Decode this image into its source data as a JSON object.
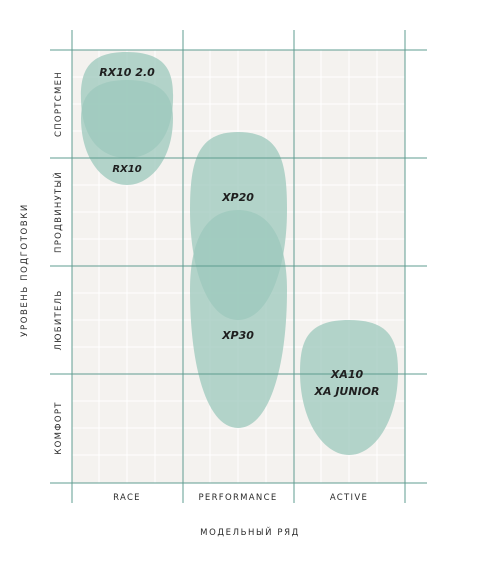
{
  "columns": [
    "RACE",
    "PERFORMANCE",
    "ACTIVE"
  ],
  "rows": [
    "СПОРТСМЕН",
    "ПРОДВИНУТЫЙ",
    "ЛЮБИТЕЛЬ",
    "КОМФОРТ"
  ],
  "x_axis_label": "МОДЕЛЬНЫЙ РЯД",
  "y_axis_label": "УРОВЕНЬ ПОДГОТОВКИ",
  "products": [
    {
      "name": "RX10 2.0",
      "column": "RACE",
      "from_level": "СПОРТСМЕН",
      "to_level": "СПОРТСМЕН"
    },
    {
      "name": "RX10",
      "column": "RACE",
      "from_level": "СПОРТСМЕН",
      "to_level": "СПОРТСМЕН"
    },
    {
      "name": "XP20",
      "column": "PERFORMANCE",
      "from_level": "ПРОДВИНУТЫЙ",
      "to_level": "ЛЮБИТЕЛЬ"
    },
    {
      "name": "XP30",
      "column": "PERFORMANCE",
      "from_level": "ПРОДВИНУТЫЙ",
      "to_level": "КОМФОРТ"
    },
    {
      "name": "XA10",
      "column": "ACTIVE",
      "from_level": "ЛЮБИТЕЛЬ",
      "to_level": "КОМФОРТ"
    },
    {
      "name": "XA JUNIOR",
      "column": "ACTIVE",
      "from_level": "ЛЮБИТЕЛЬ",
      "to_level": "КОМФОРТ"
    }
  ],
  "colors": {
    "grid_background": "#f4f2ef",
    "major_line": "#5f9c90",
    "minor_line": "#ffffff",
    "blob_fill": "#9cc8bc"
  }
}
